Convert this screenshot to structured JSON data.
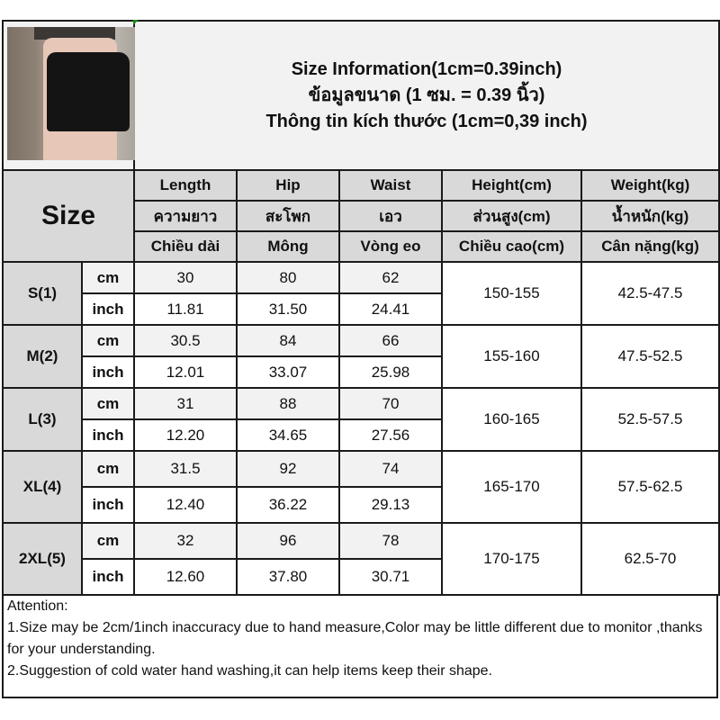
{
  "title_lines": [
    "Size Information(1cm=0.39inch)",
    "ข้อมูลขนาด (1 ซม. = 0.39 นิ้ว)",
    "Thông tin kích thước (1cm=0,39 inch)"
  ],
  "size_header": "Size",
  "columns": [
    {
      "en": "Length",
      "th": "ความยาว",
      "vi": "Chiều dài"
    },
    {
      "en": "Hip",
      "th": "สะโพก",
      "vi": "Mông"
    },
    {
      "en": "Waist",
      "th": "เอว",
      "vi": "Vòng eo"
    },
    {
      "en": "Height(cm)",
      "th": "ส่วนสูง(cm)",
      "vi": "Chiều cao(cm)"
    },
    {
      "en": "Weight(kg)",
      "th": "น้ำหนัก(kg)",
      "vi": "Cân nặng(kg)"
    }
  ],
  "units": {
    "cm": "cm",
    "inch": "inch"
  },
  "rows": [
    {
      "size": "S(1)",
      "cm": [
        "30",
        "80",
        "62"
      ],
      "inch": [
        "11.81",
        "31.50",
        "24.41"
      ],
      "height": "150-155",
      "weight": "42.5-47.5"
    },
    {
      "size": "M(2)",
      "cm": [
        "30.5",
        "84",
        "66"
      ],
      "inch": [
        "12.01",
        "33.07",
        "25.98"
      ],
      "height": "155-160",
      "weight": "47.5-52.5"
    },
    {
      "size": "L(3)",
      "cm": [
        "31",
        "88",
        "70"
      ],
      "inch": [
        "12.20",
        "34.65",
        "27.56"
      ],
      "height": "160-165",
      "weight": "52.5-57.5"
    },
    {
      "size": "XL(4)",
      "cm": [
        "31.5",
        "92",
        "74"
      ],
      "inch": [
        "12.40",
        "36.22",
        "29.13"
      ],
      "height": "165-170",
      "weight": "57.5-62.5"
    },
    {
      "size": "2XL(5)",
      "cm": [
        "32",
        "96",
        "78"
      ],
      "inch": [
        "12.60",
        "37.80",
        "30.71"
      ],
      "height": "170-175",
      "weight": "62.5-70"
    }
  ],
  "notes": {
    "heading": "Attention:",
    "line1": "1.Size may be 2cm/1inch inaccuracy due to hand measure,Color may be little different due to monitor ,thanks for your understanding.",
    "line2": "2.Suggestion of cold water hand washing,it can help items keep their shape."
  }
}
